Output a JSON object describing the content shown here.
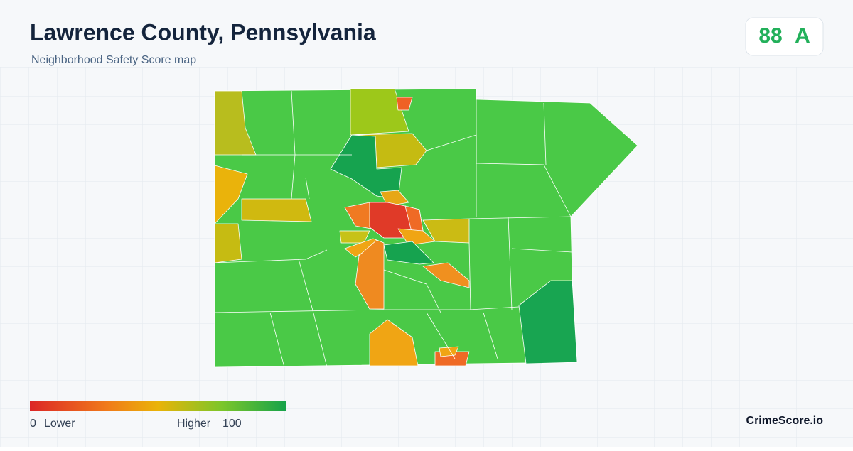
{
  "header": {
    "title": "Lawrence County, Pennsylvania",
    "subtitle": "Neighborhood Safety Score map"
  },
  "score": {
    "value": "88",
    "grade": "A"
  },
  "legend": {
    "min": "0",
    "min_label": "Lower",
    "max_label": "Higher",
    "max": "100"
  },
  "brand": "CrimeScore.io"
}
